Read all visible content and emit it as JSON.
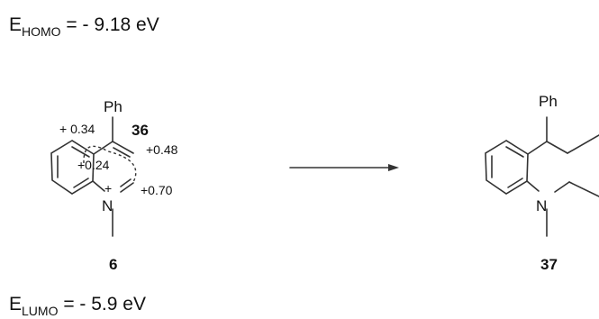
{
  "energies": {
    "homo": {
      "symbol": "E",
      "subscript": "HOMO",
      "value": "= - 9.18 eV"
    },
    "lumo": {
      "symbol": "E",
      "subscript": "LUMO",
      "value": "= - 5.9 eV"
    }
  },
  "left_molecule": {
    "substituent": "Ph",
    "nitrogen": "N",
    "plus_sign": "+",
    "compound_number": "36",
    "label_below": "6",
    "charges": [
      "+ 0.34",
      "+0.24",
      "+0.48",
      "+0.70"
    ]
  },
  "right_molecule": {
    "substituent": "Ph",
    "nitrogen": "N",
    "compound_number": "37"
  },
  "colors": {
    "ink": "#111111",
    "bond": "#333333",
    "background": "#ffffff"
  }
}
